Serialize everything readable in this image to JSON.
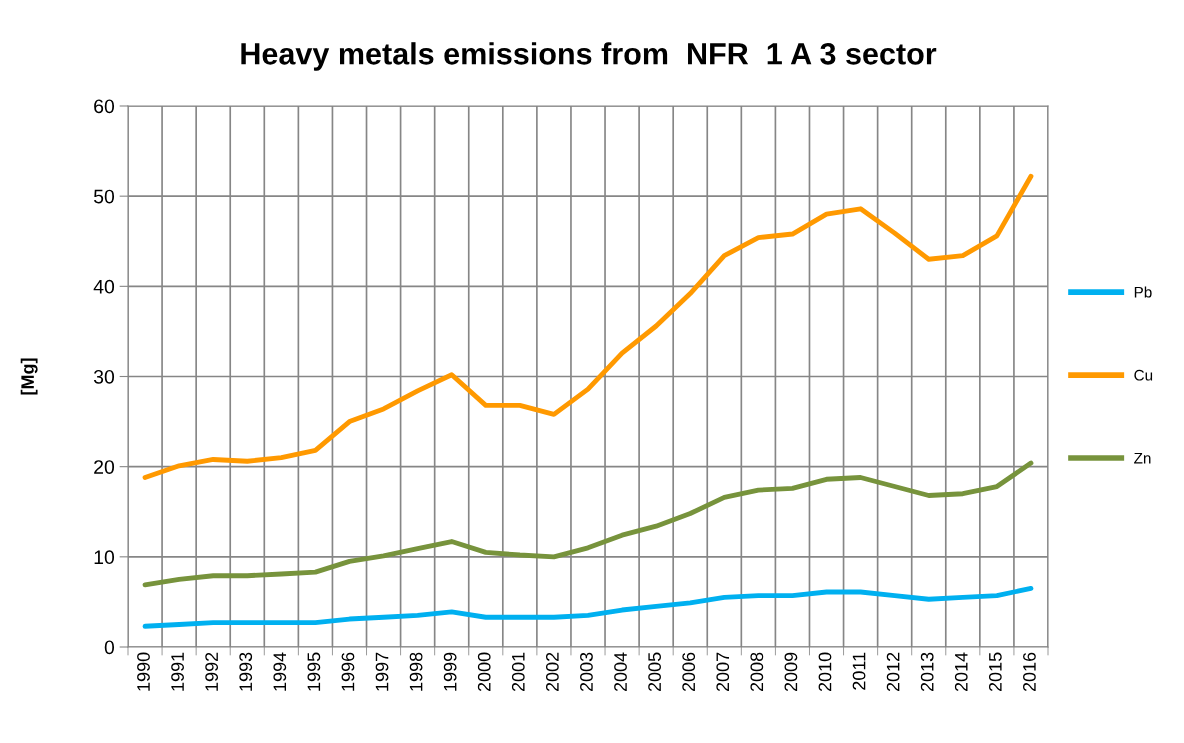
{
  "chart_data": {
    "type": "line",
    "title": "Heavy metals emissions from  NFR  1 A 3 sector",
    "ylabel": "[Mg]",
    "categories": [
      "1990",
      "1991",
      "1992",
      "1993",
      "1994",
      "1995",
      "1996",
      "1997",
      "1998",
      "1999",
      "2000",
      "2001",
      "2002",
      "2003",
      "2004",
      "2005",
      "2006",
      "2007",
      "2008",
      "2009",
      "2010",
      "2011",
      "2012",
      "2013",
      "2014",
      "2015",
      "2016"
    ],
    "ylim": [
      0,
      60
    ],
    "yticks": [
      0,
      10,
      20,
      30,
      40,
      50,
      60
    ],
    "grid": true,
    "legend": "right",
    "marker": "none",
    "line_style": "solid",
    "series": [
      {
        "name": "Pb",
        "color": "#00b0f0",
        "values": [
          2.3,
          2.5,
          2.7,
          2.7,
          2.7,
          2.7,
          3.1,
          3.3,
          3.5,
          3.9,
          3.3,
          3.3,
          3.3,
          3.5,
          4.1,
          4.5,
          4.9,
          5.5,
          5.7,
          5.7,
          6.1,
          6.1,
          5.7,
          5.3,
          5.5,
          5.7,
          6.5
        ]
      },
      {
        "name": "Cu",
        "color": "#ff9900",
        "values": [
          18.8,
          20.1,
          20.8,
          20.6,
          21.0,
          21.8,
          25.0,
          26.4,
          28.4,
          30.2,
          26.8,
          26.8,
          25.8,
          28.6,
          32.6,
          35.6,
          39.2,
          43.4,
          45.4,
          45.8,
          48.0,
          48.6,
          45.9,
          43.0,
          43.4,
          45.6,
          52.2
        ]
      },
      {
        "name": "Zn",
        "color": "#77933c",
        "values": [
          6.9,
          7.5,
          7.9,
          7.9,
          8.1,
          8.3,
          9.5,
          10.1,
          10.9,
          11.7,
          10.5,
          10.2,
          10.0,
          11.0,
          12.4,
          13.4,
          14.8,
          16.6,
          17.4,
          17.6,
          18.6,
          18.8,
          17.8,
          16.8,
          17.0,
          17.8,
          20.4
        ]
      }
    ]
  }
}
